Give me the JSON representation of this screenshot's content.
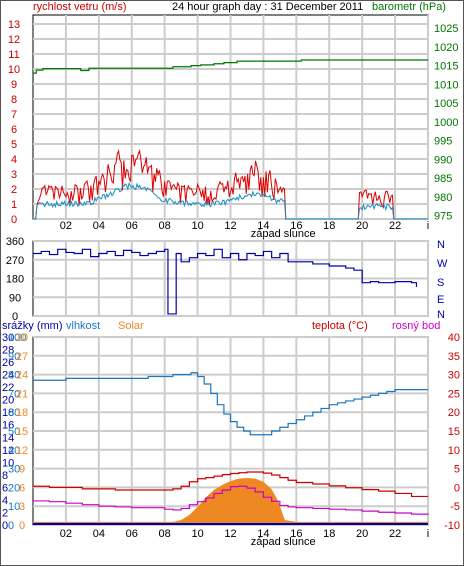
{
  "chart_data": [
    {
      "type": "line",
      "title": "24 hour graph day : 31 December 2011",
      "left_axis_label": "rychlost vetru (m/s)",
      "right_axis_label": "barometr (hPa)",
      "x_ticks": [
        "02",
        "04",
        "06",
        "08",
        "10",
        "12",
        "14",
        "16",
        "18",
        "20",
        "22"
      ],
      "x_extra_label": "západ slunce",
      "left_ticks": [
        "0",
        "1",
        "2",
        "3",
        "4",
        "5",
        "6",
        "7",
        "8",
        "9",
        "10",
        "11",
        "12",
        "13"
      ],
      "right_ticks": [
        "975",
        "980",
        "985",
        "990",
        "995",
        "1000",
        "1005",
        "1010",
        "1015",
        "1020",
        "1025"
      ],
      "ylim_left": [
        0,
        13.6
      ],
      "ylim_right": [
        974.1,
        1028.5
      ],
      "colors": {
        "gust": "#dd0000",
        "wind": "#1a8fbf",
        "pressure": "#007700"
      },
      "series": [
        {
          "role": "pressure",
          "x": [
            0,
            0.2,
            0.6,
            1.2,
            2.6,
            2.9,
            3.4,
            7.8,
            8.5,
            8.9,
            9.6,
            10.2,
            11.0,
            11.6,
            12.4,
            13.0,
            13.8,
            15.2,
            15.9,
            16.3,
            24
          ],
          "values": [
            1013.0,
            1013.8,
            1014.2,
            1014.2,
            1014.2,
            1013.7,
            1014.3,
            1014.3,
            1014.7,
            1014.7,
            1015.0,
            1015.2,
            1015.5,
            1015.8,
            1016.2,
            1016.2,
            1016.2,
            1016.2,
            1016.2,
            1016.5,
            1016.5
          ]
        }
      ]
    },
    {
      "type": "line",
      "axis_left_ticks": [
        "360",
        "270",
        "180",
        "90",
        "0"
      ],
      "axis_right_labels": [
        "N",
        "W",
        "S",
        "E",
        "N"
      ],
      "ylim": [
        0,
        360
      ],
      "color": "#0000aa",
      "series": [
        {
          "role": "wind-direction",
          "x": [
            0,
            0.5,
            1,
            1.5,
            2,
            2.5,
            3,
            3.5,
            4,
            4.5,
            5,
            5.5,
            6,
            6.5,
            7,
            7.5,
            8,
            8.1,
            8.2,
            8.6,
            8.7,
            9,
            9.5,
            10,
            10.5,
            11,
            11.5,
            12,
            12.5,
            13,
            13.5,
            14,
            14.5,
            15,
            15.5,
            16,
            17,
            18,
            19,
            19.5,
            20,
            20.5,
            21,
            22,
            23,
            23.3
          ],
          "values": [
            300,
            310,
            295,
            320,
            305,
            300,
            320,
            285,
            300,
            310,
            290,
            315,
            305,
            290,
            300,
            310,
            320,
            320,
            10,
            10,
            300,
            260,
            280,
            300,
            290,
            320,
            280,
            300,
            270,
            300,
            290,
            310,
            280,
            300,
            260,
            260,
            250,
            240,
            230,
            220,
            160,
            165,
            160,
            165,
            160,
            140
          ]
        }
      ]
    },
    {
      "type": "line",
      "left_labels": {
        "srazky": "srážky (mm)",
        "vlhkost": "vlhkost",
        "solar": "Solar",
        "teplota": "teplota (°C)",
        "rosny_bod": "rosný bod"
      },
      "x_ticks": [
        "02",
        "04",
        "06",
        "08",
        "10",
        "12",
        "14",
        "16",
        "18",
        "20",
        "22"
      ],
      "x_extra_label": "západ slunce",
      "srazky_ticks": [
        "0",
        "2",
        "4",
        "6",
        "8",
        "10",
        "12",
        "14",
        "16",
        "18",
        "20",
        "22",
        "24",
        "26",
        "28",
        "30"
      ],
      "vlhkost_ticks": [
        "0",
        "10",
        "20",
        "30",
        "40",
        "50",
        "60",
        "70",
        "80",
        "90",
        "100"
      ],
      "solar_ticks": [
        "0",
        "3",
        "6",
        "9",
        "12",
        "15",
        "18",
        "21",
        "24",
        "27",
        "30"
      ],
      "temp_ticks": [
        "-10",
        "-5",
        "0",
        "5",
        "10",
        "15",
        "20",
        "25",
        "30",
        "35",
        "40"
      ],
      "colors": {
        "srazky": "#0000aa",
        "vlhkost": "#1a78c2",
        "solar": "#ee8822",
        "teplota": "#cc0000",
        "rosny_bod": "#cc00cc"
      },
      "series": [
        {
          "role": "vlhkost",
          "axis": "humidity",
          "x": [
            0,
            1,
            2,
            3,
            4,
            5,
            6,
            7,
            7.8,
            8.5,
            9,
            9.6,
            10.0,
            10.4,
            10.8,
            11.2,
            11.6,
            12,
            12.4,
            12.8,
            13.2,
            13.6,
            14,
            14.5,
            15,
            15.5,
            16,
            16.5,
            17,
            17.5,
            18,
            18.5,
            19,
            19.5,
            20,
            20.5,
            21,
            21.5,
            22,
            22.5,
            23,
            23.5,
            24
          ],
          "values": [
            77,
            77,
            78,
            78,
            78,
            78,
            78,
            79,
            79,
            80,
            80,
            81,
            79,
            75,
            70,
            64,
            59,
            55,
            52,
            50,
            48,
            48,
            48,
            50,
            52,
            54,
            56,
            58,
            60,
            62,
            64,
            65,
            66,
            67,
            68,
            69,
            70,
            71,
            72,
            72,
            72,
            72,
            72
          ]
        },
        {
          "role": "solar",
          "axis": "solar",
          "x": [
            0,
            8.5,
            9.0,
            9.5,
            10,
            10.5,
            11,
            11.5,
            12,
            12.5,
            13,
            13.5,
            14,
            14.5,
            14.9,
            15.3,
            16,
            24
          ],
          "values": [
            0.5,
            0.5,
            0.8,
            1.6,
            2.9,
            4.4,
            5.6,
            6.4,
            7.0,
            7.4,
            7.5,
            7.4,
            6.9,
            5.7,
            3.8,
            0.8,
            0.5,
            0.5
          ]
        },
        {
          "role": "teplota",
          "axis": "temperature",
          "x": [
            0,
            1,
            2,
            3,
            4,
            5,
            6,
            7,
            8,
            8.5,
            9,
            9.5,
            10,
            10.5,
            11,
            11.5,
            12,
            12.5,
            13,
            13.5,
            14,
            14.5,
            15,
            15.5,
            16,
            17,
            18,
            19,
            20,
            21,
            22,
            23,
            24
          ],
          "values": [
            0.3,
            0,
            0,
            -0.4,
            -0.4,
            -0.7,
            -0.7,
            -0.7,
            -0.7,
            -0.4,
            0.3,
            1.5,
            2.3,
            2.6,
            3.0,
            3.4,
            3.7,
            3.9,
            4.1,
            4.1,
            3.8,
            3.3,
            2.6,
            1.9,
            1.3,
            0.9,
            0.4,
            -0.1,
            -0.6,
            -1.0,
            -1.6,
            -2.4,
            -2.4
          ]
        },
        {
          "role": "rosny_bod",
          "axis": "temperature",
          "x": [
            0,
            1,
            2,
            3,
            4,
            5,
            6,
            7,
            8,
            8.5,
            9,
            9.5,
            10,
            10.5,
            11,
            11.5,
            12,
            12.5,
            13,
            13.5,
            14,
            14.5,
            15,
            15.5,
            16,
            17,
            18,
            19,
            20,
            21,
            22,
            23,
            24
          ],
          "values": [
            -3.6,
            -3.8,
            -4.2,
            -4.6,
            -5.0,
            -5.2,
            -5.4,
            -5.4,
            -5.8,
            -6.0,
            -5.6,
            -4.6,
            -3.8,
            -2.8,
            -1.6,
            -0.7,
            0.2,
            0.3,
            -0.2,
            -1.2,
            -2.6,
            -3.7,
            -4.8,
            -5.2,
            -5.4,
            -5.6,
            -5.8,
            -6.0,
            -6.3,
            -6.6,
            -6.8,
            -7.1,
            -7.3
          ]
        },
        {
          "role": "srazky",
          "axis": "precip",
          "x": [
            0,
            24
          ],
          "values": [
            0,
            0
          ]
        }
      ]
    }
  ]
}
